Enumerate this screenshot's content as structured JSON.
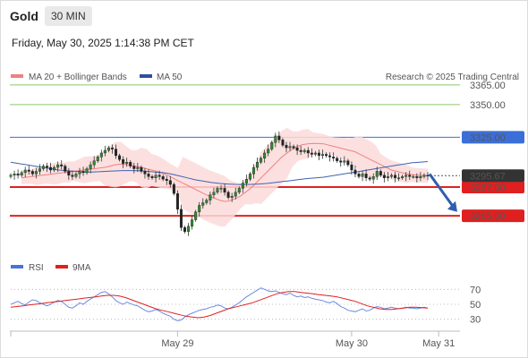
{
  "header": {
    "instrument": "Gold",
    "timeframe": "30 MIN",
    "datetime": "Friday, May 30, 2025 1:14:38 PM CET"
  },
  "legend": {
    "ma20_label": "MA 20 + Bollinger Bands",
    "ma50_label": "MA 50",
    "credit": "Research © 2025 Trading Central",
    "rsi_label": "RSI",
    "rsi_ma_label": "9MA"
  },
  "colors": {
    "green_level": "#6ab04c",
    "blue_level": "#3b6fd8",
    "red_level": "#e02020",
    "current_price": "#333333",
    "ma20": "#f08080",
    "ma50": "#4060b0",
    "bollinger_fill": "#fbdada",
    "candle_up": "#2e8b2e",
    "candle_down": "#222222",
    "rsi": "#6a8be0",
    "rsi_ma": "#e02020",
    "arrow": "#2f5fad"
  },
  "chart_data": {
    "type": "candlestick",
    "price_levels": [
      {
        "value": 3365.0,
        "label": "3365.00",
        "kind": "resistance",
        "color": "green"
      },
      {
        "value": 3350.0,
        "label": "3350.00",
        "kind": "resistance",
        "color": "green"
      },
      {
        "value": 3325.0,
        "label": "3325.00",
        "kind": "pivot",
        "color": "blue"
      },
      {
        "value": 3287.0,
        "label": "3287.00",
        "kind": "support",
        "color": "red"
      },
      {
        "value": 3265.0,
        "label": "3265.00",
        "kind": "support",
        "color": "red"
      }
    ],
    "current_price": {
      "value": 3295.67,
      "label": "3295.67"
    },
    "price_ylim": [
      3235,
      3380
    ],
    "projection": {
      "from": 3297,
      "to": 3268,
      "direction": "down"
    },
    "x_tick_labels": [
      {
        "label": "May 29",
        "index": 46
      },
      {
        "label": "May 30",
        "index": 94
      },
      {
        "label": "May 31",
        "index": 118
      }
    ],
    "bar_count": 116,
    "close": [
      3296,
      3297,
      3296,
      3298,
      3300,
      3299,
      3297,
      3299,
      3301,
      3303,
      3302,
      3300,
      3302,
      3304,
      3303,
      3299,
      3296,
      3295,
      3297,
      3299,
      3298,
      3301,
      3304,
      3307,
      3310,
      3313,
      3315,
      3317,
      3316,
      3311,
      3308,
      3305,
      3306,
      3303,
      3301,
      3302,
      3299,
      3297,
      3295,
      3294,
      3296,
      3295,
      3293,
      3292,
      3289,
      3282,
      3270,
      3256,
      3253,
      3257,
      3262,
      3268,
      3273,
      3275,
      3277,
      3281,
      3283,
      3286,
      3286,
      3283,
      3279,
      3280,
      3283,
      3286,
      3290,
      3293,
      3297,
      3302,
      3306,
      3309,
      3313,
      3316,
      3321,
      3326,
      3323,
      3319,
      3317,
      3318,
      3317,
      3315,
      3314,
      3315,
      3313,
      3312,
      3313,
      3311,
      3312,
      3311,
      3310,
      3309,
      3307,
      3306,
      3307,
      3304,
      3300,
      3297,
      3295,
      3297,
      3294,
      3293,
      3295,
      3299,
      3296,
      3294,
      3295,
      3296,
      3294,
      3294,
      3295,
      3296,
      3295,
      3295,
      3294,
      3295,
      3296,
      3295.67
    ],
    "ma20": [
      3294,
      3294.5,
      3295,
      3295.5,
      3296,
      3296.5,
      3297,
      3297.5,
      3298,
      3298.5,
      3299,
      3299.5,
      3300,
      3300.5,
      3301,
      3301.5,
      3302,
      3303,
      3304,
      3304.5,
      3304.2,
      3303.5,
      3302.8,
      3302,
      3301,
      3300,
      3299,
      3297.5,
      3296,
      3294,
      3292,
      3290,
      3288,
      3286,
      3284,
      3282,
      3280,
      3278.5,
      3277,
      3276,
      3276.5,
      3278,
      3280,
      3283,
      3286,
      3290,
      3294,
      3298,
      3302,
      3306,
      3310,
      3313,
      3316,
      3318,
      3319.5,
      3320,
      3320.3,
      3320.2,
      3320,
      3319,
      3318,
      3317,
      3316,
      3315,
      3314,
      3312,
      3310,
      3308,
      3306,
      3304,
      3302,
      3300,
      3299,
      3298,
      3297,
      3296.5,
      3296,
      3295.8,
      3295.6
    ],
    "ma50": [
      3306,
      3305,
      3304,
      3303,
      3302,
      3301,
      3300,
      3299.5,
      3299,
      3298.5,
      3298.5,
      3298.7,
      3299,
      3299.3,
      3299.6,
      3299.6,
      3299.4,
      3299,
      3298.5,
      3298,
      3297,
      3295.5,
      3294,
      3292.5,
      3291.5,
      3290.5,
      3289.8,
      3289.3,
      3289,
      3288.9,
      3289,
      3289.3,
      3289.8,
      3290.5,
      3291.3,
      3292,
      3292.8,
      3293.5,
      3294,
      3294.5,
      3295.5,
      3296.5,
      3297.5,
      3298.5,
      3299.5,
      3300.5,
      3301.5,
      3302.5,
      3303.5,
      3304.5,
      3305.5,
      3306,
      3306.5
    ],
    "rsi_ylim": [
      20,
      80
    ],
    "rsi_ticks": [
      70,
      50,
      30
    ],
    "rsi": [
      50,
      52,
      54,
      51,
      49,
      53,
      56,
      55,
      52,
      50,
      48,
      50,
      53,
      55,
      54,
      50,
      46,
      45,
      48,
      52,
      50,
      54,
      57,
      60,
      63,
      66,
      67,
      64,
      60,
      55,
      52,
      50,
      53,
      51,
      49,
      48,
      45,
      42,
      40,
      41,
      43,
      41,
      38,
      36,
      34,
      30,
      28,
      29,
      33,
      36,
      38,
      40,
      42,
      43,
      44,
      46,
      47,
      49,
      48,
      45,
      44,
      46,
      49,
      52,
      56,
      60,
      63,
      66,
      69,
      72,
      70,
      68,
      67,
      68,
      66,
      64,
      63,
      65,
      62,
      60,
      61,
      59,
      60,
      58,
      57,
      56,
      55,
      53,
      52,
      54,
      51,
      47,
      45,
      42,
      41,
      40,
      42,
      44,
      41,
      42,
      45,
      47,
      46,
      44,
      45,
      46,
      45,
      44,
      45,
      46,
      45,
      45,
      44,
      45,
      46,
      45
    ],
    "rsi_ma": [
      46,
      47,
      48,
      49,
      50,
      51,
      52,
      53,
      54,
      55,
      56,
      57,
      58,
      59,
      60,
      61,
      62,
      62,
      61,
      59,
      56,
      53,
      50,
      47,
      44,
      42,
      40,
      38,
      36,
      34,
      33,
      32,
      33,
      35,
      38,
      41,
      44,
      46,
      48,
      50,
      52,
      55,
      58,
      61,
      64,
      66,
      67,
      67,
      66,
      65,
      64,
      63,
      62,
      61,
      60,
      58,
      56,
      54,
      51,
      48,
      46,
      44,
      43,
      43,
      44,
      45,
      46,
      46,
      45.5,
      45
    ]
  },
  "arrow_label": "projection-arrow"
}
